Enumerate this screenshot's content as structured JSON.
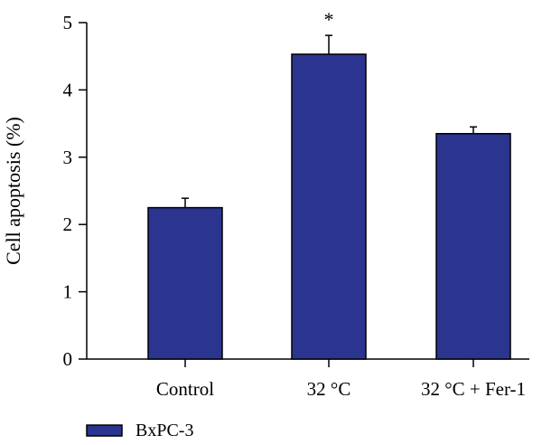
{
  "chart_data": {
    "type": "bar",
    "categories": [
      "Control",
      "32 °C",
      "32 °C + Fer-1"
    ],
    "series": [
      {
        "name": "BxPC-3",
        "values": [
          2.25,
          4.53,
          3.35
        ],
        "errors": [
          0.14,
          0.28,
          0.1
        ],
        "color": "#2b3590"
      }
    ],
    "significance": [
      "",
      "*",
      ""
    ],
    "ylabel": "Cell apoptosis (%)",
    "xlabel": "",
    "ylim": [
      0,
      5
    ],
    "yticks": [
      "0",
      "1",
      "2",
      "3",
      "4",
      "5"
    ],
    "grid": false,
    "legend": "bottom-left"
  }
}
